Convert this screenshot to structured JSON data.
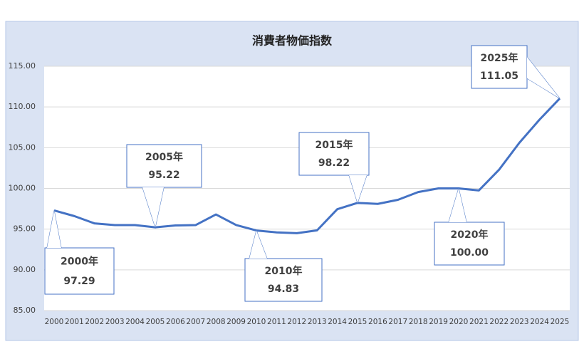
{
  "chart_data": {
    "type": "line",
    "title": "消費者物価指数",
    "categories": [
      "2000",
      "2001",
      "2002",
      "2003",
      "2004",
      "2005",
      "2006",
      "2007",
      "2008",
      "2009",
      "2010",
      "2011",
      "2012",
      "2013",
      "2014",
      "2015",
      "2016",
      "2017",
      "2018",
      "2019",
      "2020",
      "2021",
      "2022",
      "2023",
      "2024",
      "2025"
    ],
    "values": [
      97.29,
      96.6,
      95.7,
      95.5,
      95.5,
      95.22,
      95.45,
      95.5,
      96.8,
      95.5,
      94.83,
      94.6,
      94.5,
      94.85,
      97.45,
      98.22,
      98.1,
      98.6,
      99.55,
      100.0,
      100.0,
      99.75,
      102.3,
      105.6,
      108.45,
      111.05
    ],
    "value_labels": [
      "97.29",
      null,
      null,
      null,
      null,
      "95.22",
      null,
      null,
      null,
      null,
      "94.83",
      null,
      null,
      null,
      null,
      "98.22",
      null,
      null,
      null,
      null,
      "100.00",
      null,
      null,
      null,
      null,
      "111.05"
    ],
    "callout_titles": [
      "2000年",
      null,
      null,
      null,
      null,
      "2005年",
      null,
      null,
      null,
      null,
      "2010年",
      null,
      null,
      null,
      null,
      "2015年",
      null,
      null,
      null,
      null,
      "2020年",
      null,
      null,
      null,
      null,
      "2025年"
    ],
    "color": "#4472c4",
    "ylim": [
      85,
      115
    ],
    "yticks": [
      {
        "value": 85,
        "label": "85.00"
      },
      {
        "value": 90,
        "label": "90.00"
      },
      {
        "value": 95,
        "label": "95.00"
      },
      {
        "value": 100,
        "label": "100.00"
      },
      {
        "value": 105,
        "label": "105.00"
      },
      {
        "value": 110,
        "label": "110.00"
      },
      {
        "value": 115,
        "label": "115.00"
      }
    ],
    "grid": true
  }
}
